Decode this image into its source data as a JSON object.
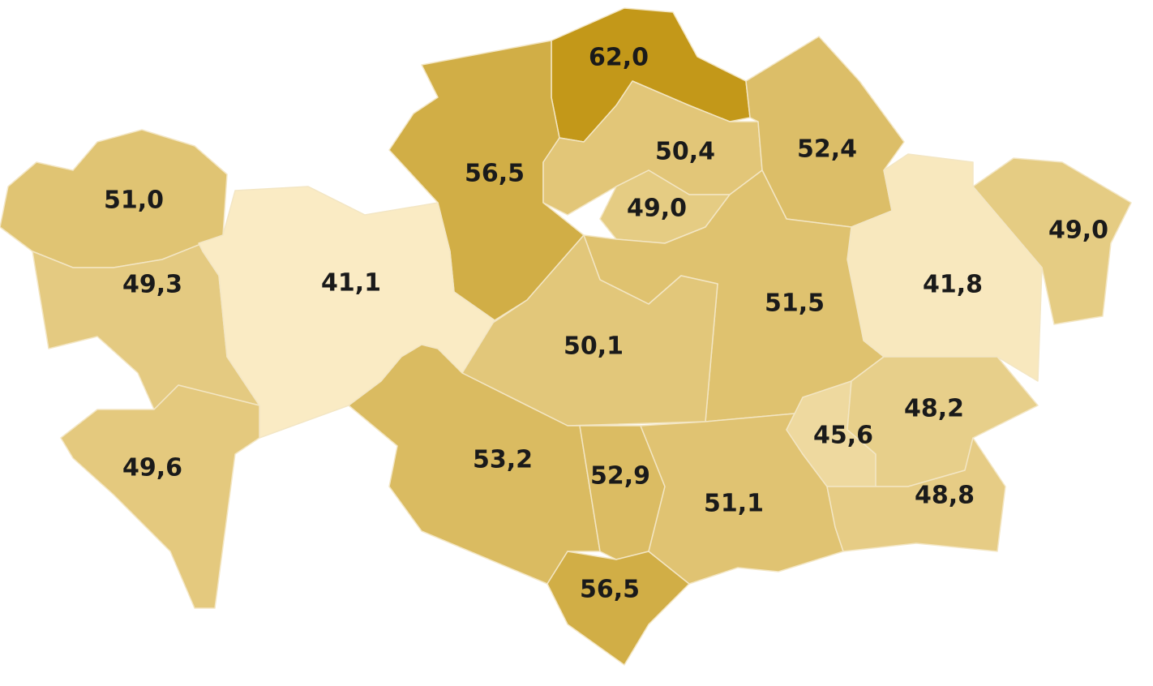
{
  "chart_data": {
    "type": "choropleth",
    "values": [
      62.0,
      56.5,
      50.4,
      49.0,
      52.4,
      49.0,
      41.8,
      51.5,
      50.1,
      51.0,
      49.3,
      41.1,
      49.6,
      53.2,
      52.9,
      56.5,
      51.1,
      45.6,
      48.2,
      48.8
    ],
    "value_labels": [
      "62,0",
      "56,5",
      "50,4",
      "49,0",
      "52,4",
      "49,0",
      "41,8",
      "51,5",
      "50,1",
      "51,0",
      "49,3",
      "41,1",
      "49,6",
      "53,2",
      "52,9",
      "56,5",
      "51,1",
      "45,6",
      "48,2",
      "48,8"
    ]
  }
}
